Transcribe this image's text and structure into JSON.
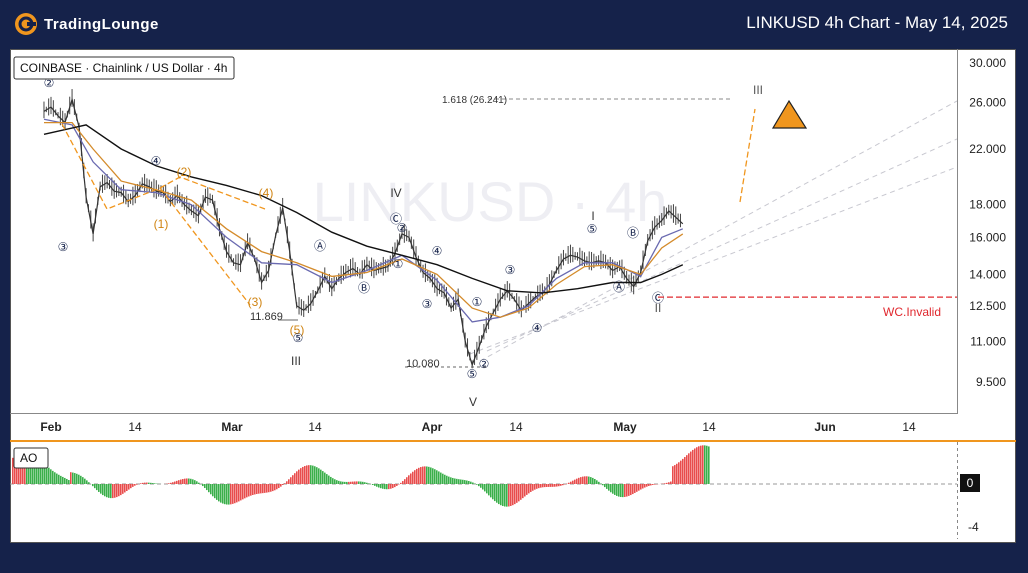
{
  "header": {
    "brand": "TradingLounge",
    "title": "LINKUSD 4h Chart - May 14, 2025"
  },
  "chart_data": [
    {
      "type": "line",
      "title": "COINBASE · Chainlink / US Dollar · 4h",
      "watermark": "LINKUSD · 4h",
      "y_scale": "log",
      "ylim": [
        8.5,
        31
      ],
      "y_ticks": [
        "30.000",
        "26.000",
        "22.000",
        "18.000",
        "16.000",
        "14.000",
        "12.500",
        "11.000",
        "9.500"
      ],
      "x_ticks": [
        "Feb",
        "14",
        "Mar",
        "14",
        "Apr",
        "14",
        "May",
        "14",
        "Jun",
        "14"
      ],
      "series": [
        {
          "values": [
            [
              -1,
              25.2
            ],
            [
              0,
              25.6
            ],
            [
              1,
              24.8
            ],
            [
              2,
              24.2
            ],
            [
              3,
              26.3
            ],
            [
              4,
              23.8
            ],
            [
              5,
              18.5
            ],
            [
              6,
              16.2
            ],
            [
              7,
              19.2
            ],
            [
              8,
              19.5
            ],
            [
              9,
              18.9
            ],
            [
              10,
              18.8
            ],
            [
              11,
              18.2
            ],
            [
              12,
              18.6
            ],
            [
              13,
              19.4
            ],
            [
              14,
              19.2
            ],
            [
              15,
              18.9
            ],
            [
              16,
              18.8
            ],
            [
              17,
              18.2
            ],
            [
              18,
              18.6
            ],
            [
              19,
              18.0
            ],
            [
              20,
              17.6
            ],
            [
              21,
              17.3
            ],
            [
              22,
              18.5
            ],
            [
              23,
              18.3
            ],
            [
              24,
              16.5
            ],
            [
              25,
              15.2
            ],
            [
              26,
              14.6
            ],
            [
              27,
              14.5
            ],
            [
              28,
              15.7
            ],
            [
              29,
              14.8
            ],
            [
              30,
              13.6
            ],
            [
              31,
              14.2
            ],
            [
              32,
              16.1
            ],
            [
              33,
              17.8
            ],
            [
              34,
              15.2
            ],
            [
              35,
              12.5
            ],
            [
              36,
              12.3
            ],
            [
              37,
              12.6
            ],
            [
              38,
              13.2
            ],
            [
              39,
              13.9
            ],
            [
              40,
              13.3
            ],
            [
              41,
              13.8
            ],
            [
              42,
              14.1
            ],
            [
              43,
              14.3
            ],
            [
              44,
              14.0
            ],
            [
              45,
              14.5
            ],
            [
              46,
              14.2
            ],
            [
              47,
              14.3
            ],
            [
              48,
              14.4
            ],
            [
              49,
              15.1
            ],
            [
              50,
              16.2
            ],
            [
              51,
              16.0
            ],
            [
              52,
              14.9
            ],
            [
              53,
              14.1
            ],
            [
              54,
              13.8
            ],
            [
              55,
              13.3
            ],
            [
              56,
              13.1
            ],
            [
              57,
              12.4
            ],
            [
              58,
              12.8
            ],
            [
              59,
              11.0
            ],
            [
              60,
              10.1
            ],
            [
              61,
              10.8
            ],
            [
              62,
              11.6
            ],
            [
              63,
              12.2
            ],
            [
              64,
              12.8
            ],
            [
              65,
              13.2
            ],
            [
              66,
              12.8
            ],
            [
              67,
              12.3
            ],
            [
              68,
              12.6
            ],
            [
              69,
              12.9
            ],
            [
              70,
              13.1
            ],
            [
              71,
              13.5
            ],
            [
              72,
              14.2
            ],
            [
              73,
              14.8
            ],
            [
              74,
              15.0
            ],
            [
              75,
              14.9
            ],
            [
              76,
              14.7
            ],
            [
              77,
              14.6
            ],
            [
              78,
              14.7
            ],
            [
              79,
              14.6
            ],
            [
              80,
              14.2
            ],
            [
              81,
              14.4
            ],
            [
              82,
              13.8
            ],
            [
              83,
              13.4
            ],
            [
              84,
              14.1
            ],
            [
              85,
              15.8
            ],
            [
              86,
              16.6
            ],
            [
              87,
              17.0
            ],
            [
              88,
              17.6
            ],
            [
              89,
              17.2
            ],
            [
              90,
              16.8
            ]
          ]
        },
        {
          "values": [
            [
              -1,
              24.5
            ],
            [
              3,
              24.0
            ],
            [
              6,
              21.0
            ],
            [
              10,
              19.0
            ],
            [
              15,
              18.8
            ],
            [
              20,
              18.0
            ],
            [
              25,
              16.0
            ],
            [
              30,
              14.6
            ],
            [
              35,
              14.5
            ],
            [
              40,
              13.6
            ],
            [
              45,
              14.2
            ],
            [
              50,
              15.0
            ],
            [
              55,
              13.7
            ],
            [
              60,
              11.8
            ],
            [
              64,
              12.0
            ],
            [
              68,
              12.5
            ],
            [
              72,
              13.8
            ],
            [
              76,
              14.6
            ],
            [
              80,
              14.6
            ],
            [
              84,
              13.9
            ],
            [
              87,
              16.0
            ],
            [
              90,
              16.5
            ]
          ]
        },
        {
          "values": [
            [
              -1,
              24.2
            ],
            [
              3,
              24.2
            ],
            [
              6,
              22.0
            ],
            [
              10,
              19.6
            ],
            [
              15,
              19.0
            ],
            [
              20,
              18.3
            ],
            [
              25,
              16.5
            ],
            [
              30,
              15.2
            ],
            [
              35,
              14.6
            ],
            [
              40,
              13.9
            ],
            [
              45,
              14.1
            ],
            [
              50,
              14.8
            ],
            [
              55,
              14.0
            ],
            [
              60,
              12.4
            ],
            [
              64,
              12.0
            ],
            [
              68,
              12.4
            ],
            [
              72,
              13.5
            ],
            [
              76,
              14.4
            ],
            [
              80,
              14.5
            ],
            [
              84,
              14.0
            ],
            [
              87,
              15.4
            ],
            [
              90,
              16.2
            ]
          ]
        },
        {
          "values": [
            [
              -1,
              23.2
            ],
            [
              5,
              24.0
            ],
            [
              10,
              22.0
            ],
            [
              15,
              20.7
            ],
            [
              20,
              19.9
            ],
            [
              25,
              19.3
            ],
            [
              30,
              18.6
            ],
            [
              35,
              17.5
            ],
            [
              40,
              16.3
            ],
            [
              45,
              15.5
            ],
            [
              50,
              15.0
            ],
            [
              55,
              14.5
            ],
            [
              60,
              13.8
            ],
            [
              65,
              13.2
            ],
            [
              70,
              13.1
            ],
            [
              75,
              13.3
            ],
            [
              80,
              13.6
            ],
            [
              84,
              13.6
            ],
            [
              87,
              14.0
            ],
            [
              90,
              14.5
            ]
          ]
        }
      ],
      "wave_labels": [
        "②",
        "③",
        "④",
        "(2)",
        "(1)",
        "(4)",
        "(3)",
        "(5)",
        "11.869",
        "⑤",
        "III",
        "IV",
        "Ⓒ",
        "②",
        "①",
        "Ⓐ",
        "Ⓑ",
        "④",
        "③",
        "①",
        "③",
        "④",
        "⑤",
        "②",
        "10.080",
        "V",
        "I",
        "⑤",
        "Ⓑ",
        "Ⓐ",
        "Ⓒ",
        "II",
        "III"
      ],
      "annotations": [
        "1.618 (26.241)",
        "WC.Invalid"
      ],
      "levels": {
        "fib_1618": 26.241,
        "invalidation": 12.9
      }
    },
    {
      "type": "bar",
      "title": "AO",
      "ylim": [
        -5,
        2.5
      ],
      "y_ticks": [
        "0",
        "-4"
      ],
      "current_value": "0"
    }
  ],
  "colors": {
    "orange": "#f0961e",
    "red": "#e0282e",
    "navy": "#15224a",
    "up": "#e84d4d",
    "down": "#3aaf4a"
  }
}
